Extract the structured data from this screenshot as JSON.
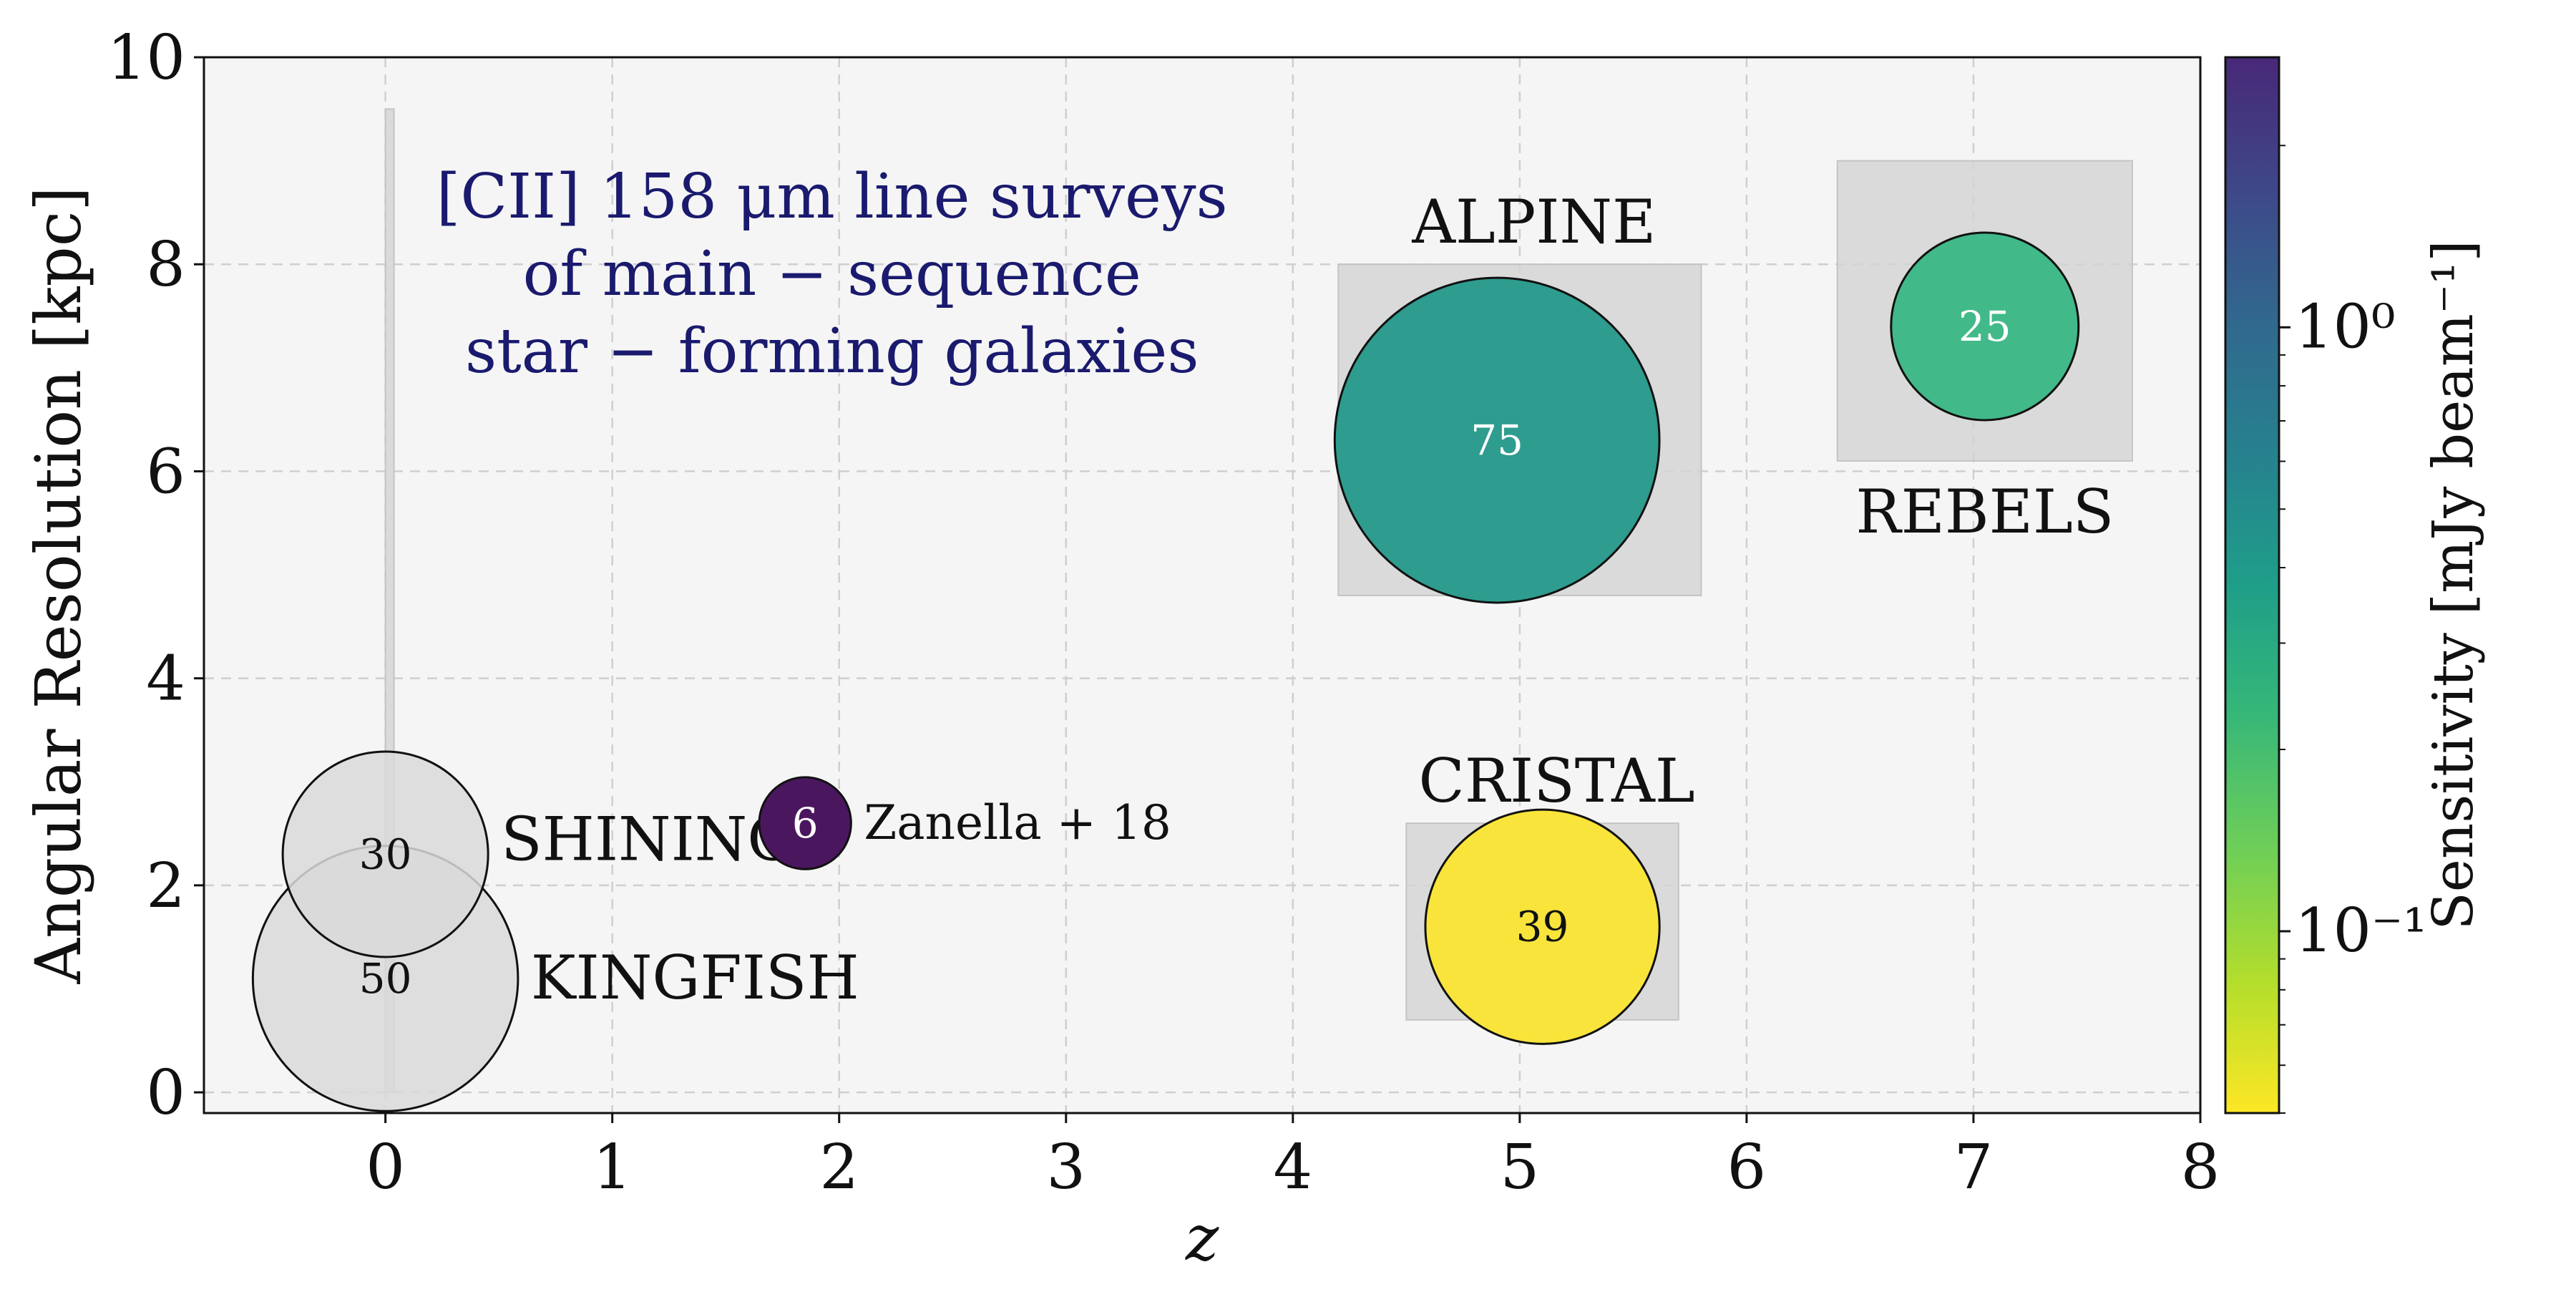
{
  "chart_data": {
    "type": "scatter",
    "title": "",
    "xlabel": "z",
    "ylabel": "Angular Resolution [kpc]",
    "xlim": [
      -0.8,
      8
    ],
    "ylim": [
      -0.2,
      10
    ],
    "x_ticks": [
      0,
      1,
      2,
      3,
      4,
      5,
      6,
      7,
      8
    ],
    "y_ticks": [
      0,
      2,
      4,
      6,
      8,
      10
    ],
    "grid": true,
    "annotation": {
      "lines": [
        "[CII] 158 μm line surveys",
        "of main − sequence",
        "star − forming galaxies"
      ],
      "color": "#1a1a6e"
    },
    "ranges": [
      {
        "survey": "SHINING/KINGFISH",
        "x": [
          0,
          0.03
        ],
        "y": [
          0,
          9.5
        ]
      },
      {
        "survey": "ALPINE",
        "x": [
          4.2,
          5.8
        ],
        "y": [
          4.8,
          8.0
        ]
      },
      {
        "survey": "REBELS",
        "x": [
          6.4,
          7.7
        ],
        "y": [
          6.1,
          9.0
        ]
      },
      {
        "survey": "CRISTAL",
        "x": [
          4.5,
          5.7
        ],
        "y": [
          0.7,
          2.6
        ]
      }
    ],
    "points": [
      {
        "survey": "KINGFISH",
        "x": 0.0,
        "y": 1.1,
        "count": "50",
        "sensitivity": null,
        "color": "#d9d9d9",
        "label": "KINGFISH"
      },
      {
        "survey": "SHINING",
        "x": 0.0,
        "y": 2.3,
        "count": "30",
        "sensitivity": null,
        "color": "#d9d9d9",
        "label": "SHINING"
      },
      {
        "survey": "Zanella+18",
        "x": 1.85,
        "y": 2.6,
        "count": "6",
        "sensitivity": 2.5,
        "color": "#4a175f",
        "label": "Zanella + 18"
      },
      {
        "survey": "ALPINE",
        "x": 4.9,
        "y": 6.3,
        "count": "75",
        "sensitivity": 0.3,
        "color": "#2e9c8e",
        "label": "ALPINE"
      },
      {
        "survey": "REBELS",
        "x": 7.05,
        "y": 7.4,
        "count": "25",
        "sensitivity": 0.2,
        "color": "#42b989",
        "label": "REBELS"
      },
      {
        "survey": "CRISTAL",
        "x": 5.1,
        "y": 1.6,
        "count": "39",
        "sensitivity": 0.05,
        "color": "#f9e43c",
        "label": "CRISTAL"
      }
    ],
    "colorbar": {
      "label": "Sensitivity [mJy beam⁻¹]",
      "scale": "log",
      "colormap": "viridis_r",
      "range": [
        0.05,
        2.8
      ],
      "ticks": [
        {
          "value": 1,
          "label": "10⁰"
        },
        {
          "value": 0.1,
          "label": "10⁻¹"
        }
      ]
    }
  }
}
